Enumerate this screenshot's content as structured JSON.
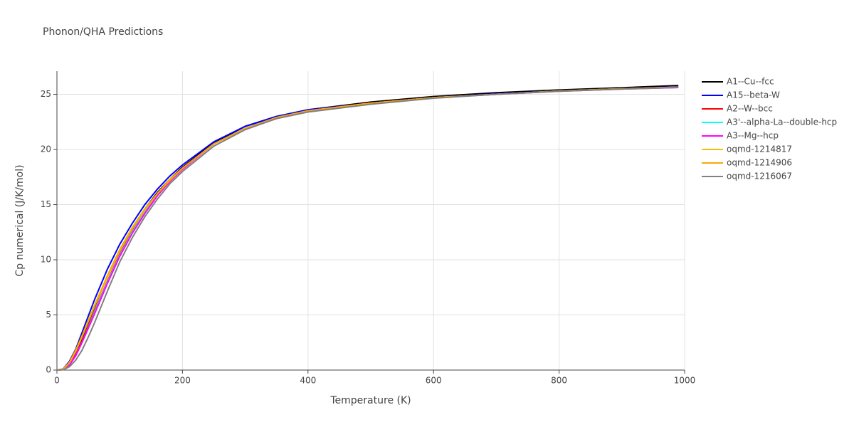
{
  "chart_data": {
    "type": "line",
    "title": "Phonon/QHA Predictions",
    "xlabel": "Temperature (K)",
    "ylabel": "Cp numerical (J/K/mol)",
    "x": [
      0,
      10,
      20,
      30,
      40,
      50,
      60,
      80,
      100,
      120,
      140,
      160,
      180,
      200,
      250,
      300,
      350,
      400,
      500,
      600,
      700,
      800,
      900,
      990
    ],
    "series": [
      {
        "name": "A1--Cu--fcc",
        "color": "#000000",
        "values": [
          0,
          0.05,
          0.6,
          1.6,
          2.9,
          4.3,
          5.7,
          8.5,
          10.9,
          12.9,
          14.6,
          16.1,
          17.3,
          18.4,
          20.6,
          22.1,
          23.0,
          23.6,
          24.3,
          24.8,
          25.15,
          25.4,
          25.6,
          25.8
        ]
      },
      {
        "name": "A15--beta-W",
        "color": "#0000ff",
        "values": [
          0,
          0.1,
          0.8,
          1.9,
          3.4,
          4.9,
          6.4,
          9.1,
          11.4,
          13.3,
          15.0,
          16.4,
          17.6,
          18.6,
          20.7,
          22.1,
          23.0,
          23.6,
          24.2,
          24.7,
          25.05,
          25.3,
          25.5,
          25.7
        ]
      },
      {
        "name": "A2--W--bcc",
        "color": "#ff0000",
        "values": [
          0,
          0.05,
          0.5,
          1.4,
          2.6,
          3.9,
          5.3,
          8.0,
          10.5,
          12.6,
          14.4,
          15.9,
          17.2,
          18.3,
          20.5,
          21.9,
          22.9,
          23.5,
          24.2,
          24.7,
          25.0,
          25.3,
          25.5,
          25.65
        ]
      },
      {
        "name": "A3'--alpha-La--double-hcp",
        "color": "#00ffff",
        "values": [
          0,
          0.04,
          0.45,
          1.3,
          2.5,
          3.8,
          5.2,
          7.9,
          10.4,
          12.5,
          14.3,
          15.9,
          17.2,
          18.3,
          20.5,
          21.9,
          22.9,
          23.5,
          24.2,
          24.7,
          25.0,
          25.3,
          25.5,
          25.65
        ]
      },
      {
        "name": "A3--Mg--hcp",
        "color": "#ff00ff",
        "values": [
          0,
          0.04,
          0.45,
          1.3,
          2.5,
          3.8,
          5.1,
          7.8,
          10.3,
          12.4,
          14.2,
          15.8,
          17.1,
          18.2,
          20.5,
          21.9,
          22.9,
          23.5,
          24.2,
          24.7,
          25.0,
          25.28,
          25.48,
          25.62
        ]
      },
      {
        "name": "oqmd-1214817",
        "color": "#f0c000",
        "values": [
          0,
          0.08,
          0.7,
          1.8,
          3.1,
          4.5,
          5.9,
          8.5,
          10.9,
          12.9,
          14.6,
          16.0,
          17.3,
          18.3,
          20.5,
          21.9,
          22.9,
          23.5,
          24.2,
          24.7,
          25.0,
          25.3,
          25.5,
          25.65
        ]
      },
      {
        "name": "oqmd-1214906",
        "color": "#ffa500",
        "values": [
          0,
          0.07,
          0.65,
          1.7,
          3.0,
          4.4,
          5.8,
          8.4,
          10.8,
          12.8,
          14.5,
          16.0,
          17.2,
          18.3,
          20.5,
          21.9,
          22.9,
          23.5,
          24.2,
          24.7,
          25.0,
          25.3,
          25.5,
          25.65
        ]
      },
      {
        "name": "oqmd-1216067",
        "color": "#808080",
        "values": [
          0,
          0.02,
          0.3,
          0.9,
          1.8,
          3.0,
          4.3,
          7.1,
          9.8,
          12.0,
          13.9,
          15.5,
          16.9,
          18.0,
          20.3,
          21.8,
          22.8,
          23.4,
          24.1,
          24.65,
          25.0,
          25.28,
          25.48,
          25.62
        ]
      }
    ],
    "xlim": [
      0,
      1000
    ],
    "xticks": [
      0,
      200,
      400,
      600,
      800,
      1000
    ],
    "ylim": [
      0,
      27.1
    ],
    "yticks": [
      0,
      5,
      10,
      15,
      20,
      25
    ],
    "grid": true
  }
}
